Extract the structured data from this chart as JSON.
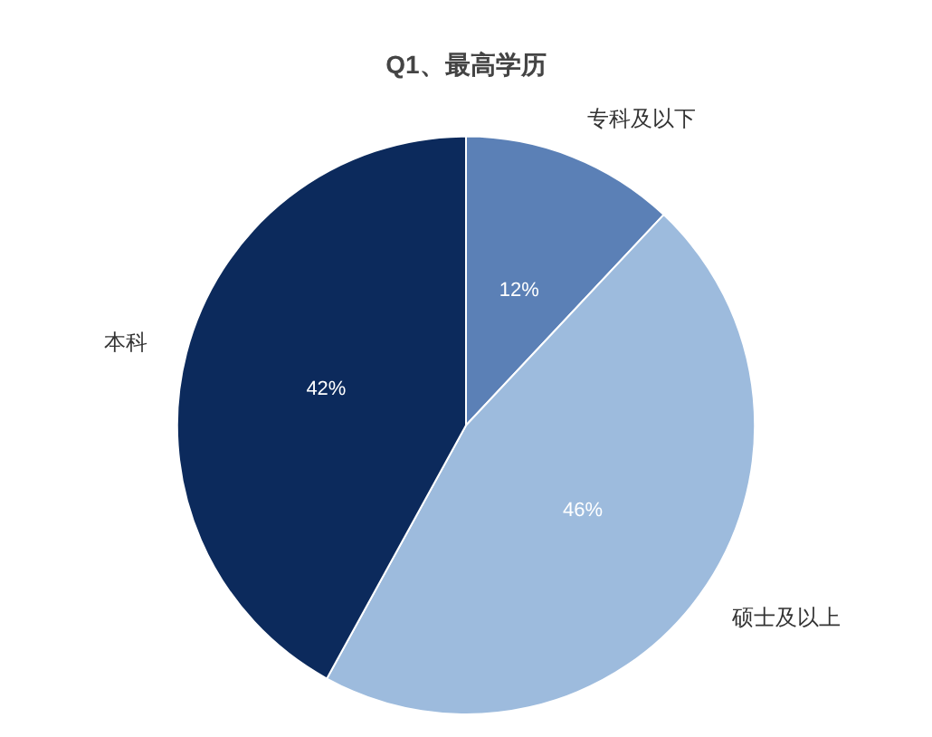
{
  "chart_data": {
    "type": "pie",
    "title": "Q1、最高学历",
    "categories": [
      "专科及以下",
      "硕士及以上",
      "本科"
    ],
    "values": [
      12,
      46,
      42
    ],
    "value_labels": [
      "12%",
      "46%",
      "42%"
    ],
    "colors": [
      "#5b80b6",
      "#9dbbdd",
      "#0c2a5c"
    ],
    "legend": false
  }
}
